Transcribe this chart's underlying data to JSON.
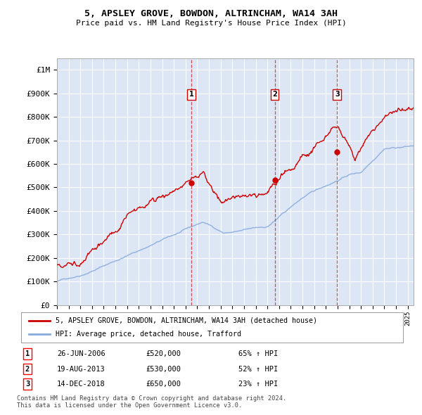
{
  "title": "5, APSLEY GROVE, BOWDON, ALTRINCHAM, WA14 3AH",
  "subtitle": "Price paid vs. HM Land Registry's House Price Index (HPI)",
  "ylabel_ticks": [
    "£0",
    "£100K",
    "£200K",
    "£300K",
    "£400K",
    "£500K",
    "£600K",
    "£700K",
    "£800K",
    "£900K",
    "£1M"
  ],
  "ytick_values": [
    0,
    100000,
    200000,
    300000,
    400000,
    500000,
    600000,
    700000,
    800000,
    900000,
    1000000
  ],
  "ylim": [
    0,
    1050000
  ],
  "xlim_start": 1995.0,
  "xlim_end": 2025.5,
  "background_color": "#dce6f5",
  "plot_bg_color": "#dce6f5",
  "grid_color": "#ffffff",
  "sale_color": "#cc0000",
  "hpi_color": "#88aadd",
  "sale_label": "5, APSLEY GROVE, BOWDON, ALTRINCHAM, WA14 3AH (detached house)",
  "hpi_label": "HPI: Average price, detached house, Trafford",
  "transactions": [
    {
      "num": 1,
      "date": "26-JUN-2006",
      "price": 520000,
      "hpi_pct": "65%",
      "x": 2006.49
    },
    {
      "num": 2,
      "date": "19-AUG-2013",
      "price": 530000,
      "hpi_pct": "52%",
      "x": 2013.63
    },
    {
      "num": 3,
      "date": "14-DEC-2018",
      "price": 650000,
      "hpi_pct": "23%",
      "x": 2018.96
    }
  ],
  "footnote1": "Contains HM Land Registry data © Crown copyright and database right 2024.",
  "footnote2": "This data is licensed under the Open Government Licence v3.0."
}
